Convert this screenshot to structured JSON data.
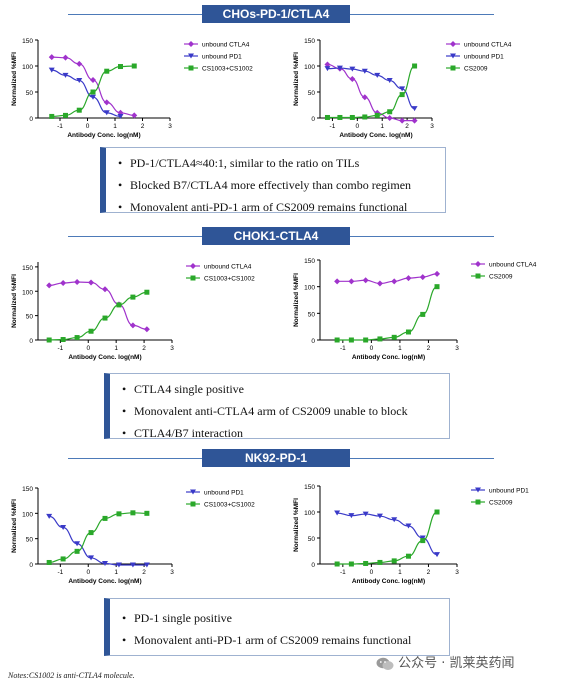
{
  "sections": [
    {
      "title": "CHOs-PD-1/CTLA4",
      "notes": [
        "PD-1/CTLA4≈40:1, similar to the ratio on TILs",
        "Blocked B7/CTLA4 more effectively than combo regimen",
        "Monovalent anti-PD-1 arm of CS2009 remains functional"
      ]
    },
    {
      "title": "CHOK1-CTLA4",
      "notes": [
        "CTLA4 single positive",
        "Monovalent anti-CTLA4 arm of CS2009 unable to block",
        "CTLA4/B7 interaction"
      ]
    },
    {
      "title": "NK92-PD-1",
      "notes": [
        "PD-1 single positive",
        "Monovalent anti-PD-1 arm of CS2009 remains functional"
      ]
    }
  ],
  "footer_note": "Notes:CS1002 is anti-CTLA4 molecule.",
  "watermark": {
    "icon": "wechat-logo-icon",
    "text": "公众号 · 凯莱英药闻"
  },
  "colors": {
    "banner": "#2f5597",
    "ctla4": "#a033cc",
    "pd1": "#3a3ac8",
    "combo": "#2aa82a"
  },
  "chart_data": [
    {
      "type": "scatter",
      "panel": "CHOs combo",
      "xlabel": "Antibody Conc. log(nM)",
      "ylabel": "Normalized %MFI",
      "xlim": [
        -1.8,
        3
      ],
      "ylim": [
        0,
        150
      ],
      "xticks": [
        -1,
        0,
        1,
        2,
        3
      ],
      "yticks": [
        0,
        50,
        100,
        150
      ],
      "series": [
        {
          "name": "unbound CTLA4",
          "marker": "diamond",
          "color": "#a033cc",
          "x": [
            -1.3,
            -0.8,
            -0.3,
            0.2,
            0.7,
            1.2,
            1.7
          ],
          "y": [
            117,
            116,
            104,
            73,
            30,
            10,
            5
          ]
        },
        {
          "name": "unbound PD1",
          "marker": "tri-down",
          "color": "#3a3ac8",
          "x": [
            -1.3,
            -0.8,
            -0.3,
            0.2,
            0.7,
            1.2
          ],
          "y": [
            92,
            82,
            72,
            40,
            10,
            3
          ]
        },
        {
          "name": "CS1003+CS1002",
          "marker": "square",
          "color": "#2aa82a",
          "x": [
            -1.3,
            -0.8,
            -0.3,
            0.2,
            0.7,
            1.2,
            1.7
          ],
          "y": [
            3,
            5,
            15,
            50,
            90,
            99,
            100
          ]
        }
      ]
    },
    {
      "type": "scatter",
      "panel": "CHOs CS2009",
      "xlabel": "Antibody Conc. log(nM)",
      "ylabel": "Normalized %MFI",
      "xlim": [
        -1.5,
        3
      ],
      "ylim": [
        0,
        150
      ],
      "xticks": [
        -1,
        0,
        1,
        2,
        3
      ],
      "yticks": [
        0,
        50,
        100,
        150
      ],
      "series": [
        {
          "name": "unbound CTLA4",
          "marker": "diamond",
          "color": "#a033cc",
          "x": [
            -1.2,
            -0.7,
            -0.2,
            0.3,
            0.8,
            1.3,
            1.8,
            2.3
          ],
          "y": [
            103,
            95,
            75,
            40,
            10,
            0,
            -5,
            -5
          ]
        },
        {
          "name": "unbound PD1",
          "marker": "tri-down",
          "color": "#3a3ac8",
          "x": [
            -1.2,
            -0.7,
            -0.2,
            0.3,
            0.8,
            1.3,
            1.8,
            2.3
          ],
          "y": [
            95,
            96,
            94,
            90,
            82,
            72,
            56,
            18
          ]
        },
        {
          "name": "CS2009",
          "marker": "square",
          "color": "#2aa82a",
          "x": [
            -1.2,
            -0.7,
            -0.2,
            0.3,
            0.8,
            1.3,
            1.8,
            2.3
          ],
          "y": [
            1,
            1,
            1,
            2,
            5,
            12,
            45,
            100
          ]
        }
      ]
    },
    {
      "type": "scatter",
      "panel": "CHOK1 combo",
      "xlabel": "Antibody Conc. log(nM)",
      "ylabel": "Normalized %MFI",
      "xlim": [
        -1.8,
        3
      ],
      "ylim": [
        0,
        160
      ],
      "xticks": [
        -1,
        0,
        1,
        2,
        3
      ],
      "yticks": [
        0,
        50,
        100,
        150
      ],
      "series": [
        {
          "name": "unbound CTLA4",
          "marker": "diamond",
          "color": "#a033cc",
          "x": [
            -1.4,
            -0.9,
            -0.4,
            0.1,
            0.6,
            1.1,
            1.6,
            2.1
          ],
          "y": [
            112,
            117,
            119,
            118,
            104,
            73,
            30,
            22
          ]
        },
        {
          "name": "CS1003+CS1002",
          "marker": "square",
          "color": "#2aa82a",
          "x": [
            -1.4,
            -0.9,
            -0.4,
            0.1,
            0.6,
            1.1,
            1.6,
            2.1
          ],
          "y": [
            0,
            1,
            5,
            18,
            45,
            72,
            88,
            98
          ]
        }
      ]
    },
    {
      "type": "scatter",
      "panel": "CHOK1 CS2009",
      "xlabel": "Antibody Conc. log(nM)",
      "ylabel": "Normalized %MFI",
      "xlim": [
        -1.8,
        3
      ],
      "ylim": [
        0,
        150
      ],
      "xticks": [
        -1,
        0,
        1,
        2,
        3
      ],
      "yticks": [
        0,
        50,
        100,
        150
      ],
      "series": [
        {
          "name": "unbound CTLA4",
          "marker": "diamond",
          "color": "#a033cc",
          "x": [
            -1.2,
            -0.7,
            -0.2,
            0.3,
            0.8,
            1.3,
            1.8,
            2.3
          ],
          "y": [
            110,
            110,
            112,
            106,
            110,
            116,
            118,
            124
          ]
        },
        {
          "name": "CS2009",
          "marker": "square",
          "color": "#2aa82a",
          "x": [
            -1.2,
            -0.7,
            -0.2,
            0.3,
            0.8,
            1.3,
            1.8,
            2.3
          ],
          "y": [
            0,
            0,
            0,
            2,
            5,
            15,
            48,
            100
          ]
        }
      ]
    },
    {
      "type": "scatter",
      "panel": "NK92 combo",
      "xlabel": "Antibody Conc. log(nM)",
      "ylabel": "Normalized %MFI",
      "xlim": [
        -1.8,
        3
      ],
      "ylim": [
        0,
        150
      ],
      "xticks": [
        -1,
        0,
        1,
        2,
        3
      ],
      "yticks": [
        0,
        50,
        100,
        150
      ],
      "series": [
        {
          "name": "unbound PD1",
          "marker": "tri-down",
          "color": "#3a3ac8",
          "x": [
            -1.4,
            -0.9,
            -0.4,
            0.1,
            0.6,
            1.1,
            1.6,
            2.1
          ],
          "y": [
            94,
            72,
            40,
            12,
            1,
            -2,
            -2,
            -2
          ]
        },
        {
          "name": "CS1003+CS1002",
          "marker": "square",
          "color": "#2aa82a",
          "x": [
            -1.4,
            -0.9,
            -0.4,
            0.1,
            0.6,
            1.1,
            1.6,
            2.1
          ],
          "y": [
            3,
            10,
            25,
            62,
            90,
            99,
            101,
            100
          ]
        }
      ]
    },
    {
      "type": "scatter",
      "panel": "NK92 CS2009",
      "xlabel": "Antibody Conc. log(nM)",
      "ylabel": "Normalized %MFI",
      "xlim": [
        -1.8,
        3
      ],
      "ylim": [
        0,
        150
      ],
      "xticks": [
        -1,
        0,
        1,
        2,
        3
      ],
      "yticks": [
        0,
        50,
        100,
        150
      ],
      "series": [
        {
          "name": "unbound PD1",
          "marker": "tri-down",
          "color": "#3a3ac8",
          "x": [
            -1.2,
            -0.7,
            -0.2,
            0.3,
            0.8,
            1.3,
            1.8,
            2.3
          ],
          "y": [
            98,
            93,
            96,
            92,
            85,
            73,
            50,
            18
          ]
        },
        {
          "name": "CS2009",
          "marker": "square",
          "color": "#2aa82a",
          "x": [
            -1.2,
            -0.7,
            -0.2,
            0.3,
            0.8,
            1.3,
            1.8,
            2.3
          ],
          "y": [
            0,
            0,
            1,
            3,
            6,
            15,
            45,
            100
          ]
        }
      ]
    }
  ]
}
